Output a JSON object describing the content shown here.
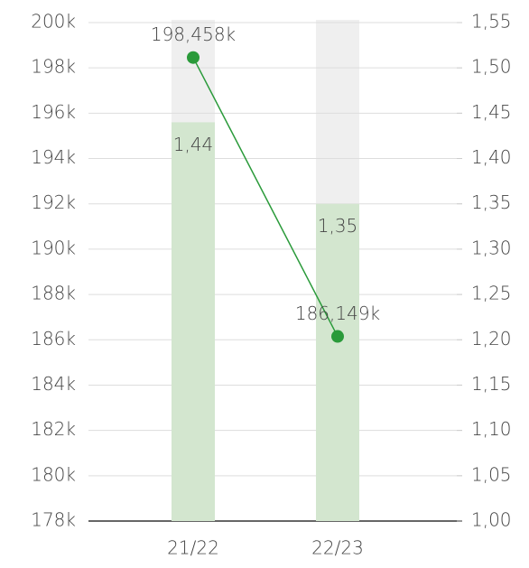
{
  "chart_data": {
    "type": "combo",
    "categories": [
      "21/22",
      "22/23"
    ],
    "band_color": "#efefef",
    "series": [
      {
        "type": "bar",
        "axis": "y2",
        "color": "#d3e6cf",
        "values": [
          1.44,
          1.35
        ],
        "value_labels": [
          "1,44",
          "1,35"
        ]
      },
      {
        "type": "line",
        "axis": "y",
        "color": "#2a9a3a",
        "values": [
          198458,
          186149
        ],
        "value_labels": [
          "198,458k",
          "186,149k"
        ]
      }
    ],
    "ylim": [
      178000,
      200000
    ],
    "yticks": [
      {
        "value": 178000,
        "label": "178k"
      },
      {
        "value": 180000,
        "label": "180k"
      },
      {
        "value": 182000,
        "label": "182k"
      },
      {
        "value": 184000,
        "label": "184k"
      },
      {
        "value": 186000,
        "label": "186k"
      },
      {
        "value": 188000,
        "label": "188k"
      },
      {
        "value": 190000,
        "label": "190k"
      },
      {
        "value": 192000,
        "label": "192k"
      },
      {
        "value": 194000,
        "label": "194k"
      },
      {
        "value": 196000,
        "label": "196k"
      },
      {
        "value": 198000,
        "label": "198k"
      },
      {
        "value": 200000,
        "label": "200k"
      }
    ],
    "y2lim": [
      1,
      1.55
    ],
    "y2ticks": [
      {
        "value": 1,
        "label": "1,00"
      },
      {
        "value": 1.05,
        "label": "1,05"
      },
      {
        "value": 1.1,
        "label": "1,10"
      },
      {
        "value": 1.15,
        "label": "1,15"
      },
      {
        "value": 1.2,
        "label": "1,20"
      },
      {
        "value": 1.25,
        "label": "1,25"
      },
      {
        "value": 1.3,
        "label": "1,30"
      },
      {
        "value": 1.35,
        "label": "1,35"
      },
      {
        "value": 1.4,
        "label": "1,40"
      },
      {
        "value": 1.45,
        "label": "1,45"
      },
      {
        "value": 1.5,
        "label": "1,50"
      },
      {
        "value": 1.55,
        "label": "1,55"
      }
    ],
    "grid": true
  }
}
